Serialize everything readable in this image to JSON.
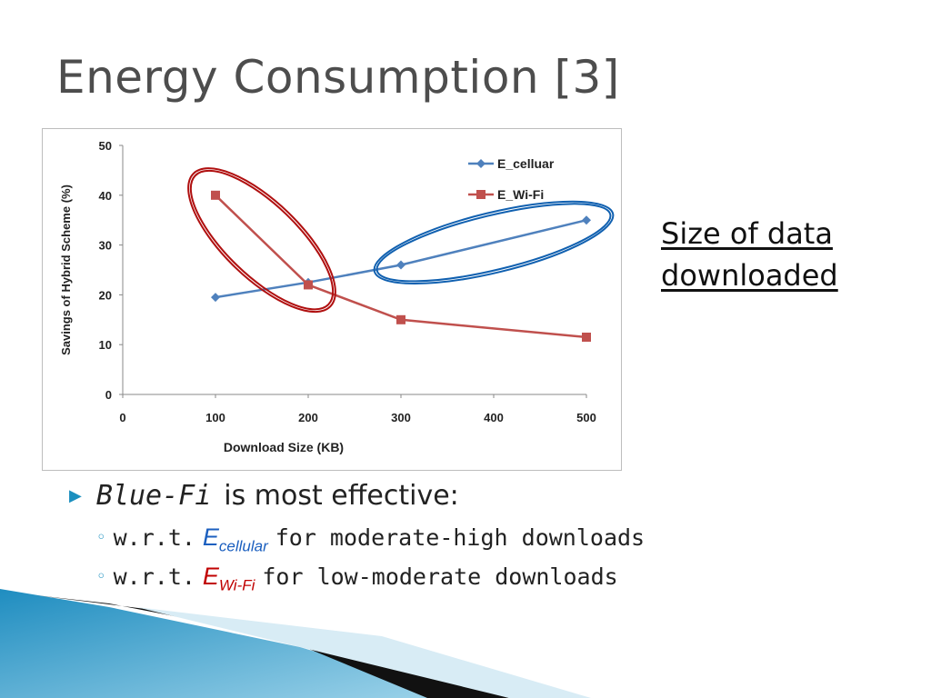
{
  "slide": {
    "title": "Energy Consumption [3]",
    "side_note": [
      "Size of data",
      "downloaded"
    ]
  },
  "bullets": {
    "main": {
      "emphasis": "Blue-Fi",
      "text": "is most effective:"
    },
    "sub": [
      {
        "prefix": "w.r.t.",
        "symbol": "E",
        "subscript": "cellular",
        "text": "for moderate-high downloads",
        "color": "#1b5fbf"
      },
      {
        "prefix": "w.r.t.",
        "symbol": "E",
        "subscript": "Wi-Fi",
        "text": "for low-moderate downloads",
        "color": "#c00000"
      }
    ]
  },
  "colors": {
    "cellular": "#4f81bd",
    "wifi": "#c0504d",
    "highlight_red": "#b01010",
    "highlight_blue": "#1060b0",
    "bullet_marker": "#1b8fbf"
  },
  "chart_data": {
    "type": "line",
    "xlabel": "Download Size (KB)",
    "ylabel": "Savings of Hybrid Scheme (%)",
    "xlim": [
      0,
      500
    ],
    "ylim": [
      0,
      50
    ],
    "x_ticks": [
      0,
      100,
      200,
      300,
      400,
      500
    ],
    "y_ticks": [
      0,
      10,
      20,
      30,
      40,
      50
    ],
    "legend_position": "top-right",
    "series": [
      {
        "name": "E_celluar",
        "marker": "diamond",
        "x": [
          100,
          200,
          300,
          500
        ],
        "y": [
          19.5,
          22.5,
          26,
          35
        ]
      },
      {
        "name": "E_Wi-Fi",
        "marker": "square",
        "x": [
          100,
          200,
          300,
          500
        ],
        "y": [
          40,
          22,
          15,
          11.5
        ]
      }
    ],
    "annotations": [
      {
        "type": "ellipse",
        "color": "#b01010",
        "around_series": "E_Wi-Fi",
        "x_range": [
          100,
          200
        ]
      },
      {
        "type": "ellipse",
        "color": "#1060b0",
        "around_series": "E_celluar",
        "x_range": [
          300,
          500
        ]
      }
    ]
  }
}
